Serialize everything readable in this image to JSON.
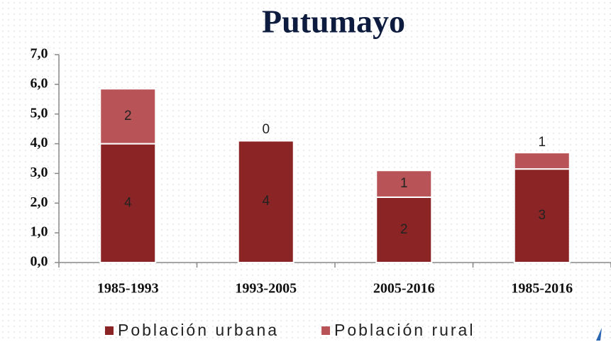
{
  "chart_data": {
    "type": "stacked_bar",
    "title": "Putumayo",
    "categories": [
      "1985-1993",
      "1993-2005",
      "2005-2016",
      "1985-2016"
    ],
    "series": [
      {
        "name": "Población urbana",
        "color": "#8b2525",
        "values": [
          4.0,
          4.1,
          2.2,
          3.15
        ],
        "value_labels": [
          "4",
          "4",
          "2",
          "3"
        ]
      },
      {
        "name": "Población rural",
        "color": "#b85457",
        "values": [
          1.85,
          0.03,
          0.9,
          0.55
        ],
        "value_labels": [
          "2",
          "0",
          "1",
          "1"
        ]
      }
    ],
    "ylim": [
      0,
      7
    ],
    "yticks": [
      {
        "value": 0,
        "label": "0,0"
      },
      {
        "value": 1,
        "label": "1,0"
      },
      {
        "value": 2,
        "label": "2,0"
      },
      {
        "value": 3,
        "label": "3,0"
      },
      {
        "value": 4,
        "label": "4,0"
      },
      {
        "value": 5,
        "label": "5,0"
      },
      {
        "value": 6,
        "label": "6,0"
      },
      {
        "value": 7,
        "label": "7,0"
      }
    ],
    "legend": "bottom"
  }
}
